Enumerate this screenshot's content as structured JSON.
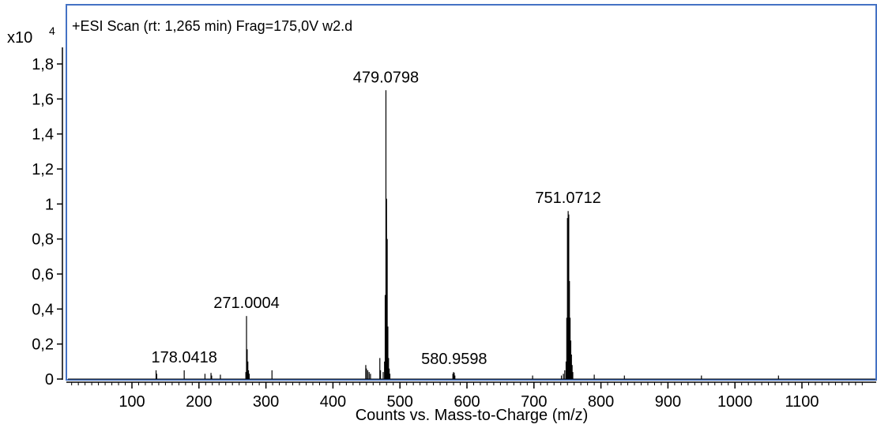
{
  "chart_data": {
    "type": "spectrum",
    "title": "+ESI Scan (rt: 1,265 min) Frag=175,0V w2.d",
    "xlabel": "Counts vs. Mass-to-Charge (m/z)",
    "ylabel": "",
    "y_multiplier": "x10",
    "y_exponent": "4",
    "xlim": [
      0,
      1230
    ],
    "ylim": [
      0,
      1.9
    ],
    "x_ticks": [
      100,
      200,
      300,
      400,
      500,
      600,
      700,
      800,
      900,
      1000,
      1100
    ],
    "x_tick_labels": [
      "100",
      "200",
      "300",
      "400",
      "500",
      "600",
      "700",
      "800",
      "900",
      "1000",
      "1100"
    ],
    "y_ticks": [
      0,
      0.2,
      0.4,
      0.6,
      0.8,
      1,
      1.2,
      1.4,
      1.6,
      1.8
    ],
    "y_tick_labels": [
      "0",
      "0,2",
      "0,4",
      "0,6",
      "0,8",
      "1",
      "1,2",
      "1,4",
      "1,6",
      "1,8"
    ],
    "peak_labels": [
      {
        "mz": 178.0418,
        "text": "178.0418",
        "intensity": 0.05
      },
      {
        "mz": 271.0004,
        "text": "271.0004",
        "intensity": 0.36
      },
      {
        "mz": 479.0798,
        "text": "479.0798",
        "intensity": 1.65
      },
      {
        "mz": 580.9598,
        "text": "580.9598",
        "intensity": 0.04
      },
      {
        "mz": 751.0712,
        "text": "751.0712",
        "intensity": 0.96
      }
    ],
    "peaks": [
      {
        "mz": 136.0,
        "intensity": 0.05
      },
      {
        "mz": 137.0,
        "intensity": 0.03
      },
      {
        "mz": 178.0,
        "intensity": 0.05
      },
      {
        "mz": 209.0,
        "intensity": 0.03
      },
      {
        "mz": 218.0,
        "intensity": 0.035
      },
      {
        "mz": 219.0,
        "intensity": 0.02
      },
      {
        "mz": 232.0,
        "intensity": 0.025
      },
      {
        "mz": 270.0,
        "intensity": 0.04
      },
      {
        "mz": 271.0,
        "intensity": 0.36
      },
      {
        "mz": 272.0,
        "intensity": 0.17
      },
      {
        "mz": 273.0,
        "intensity": 0.1
      },
      {
        "mz": 274.0,
        "intensity": 0.05
      },
      {
        "mz": 275.0,
        "intensity": 0.03
      },
      {
        "mz": 309.0,
        "intensity": 0.05
      },
      {
        "mz": 449.0,
        "intensity": 0.08
      },
      {
        "mz": 450.0,
        "intensity": 0.06
      },
      {
        "mz": 452.0,
        "intensity": 0.05
      },
      {
        "mz": 454.0,
        "intensity": 0.04
      },
      {
        "mz": 456.0,
        "intensity": 0.03
      },
      {
        "mz": 470.0,
        "intensity": 0.12
      },
      {
        "mz": 471.0,
        "intensity": 0.05
      },
      {
        "mz": 475.0,
        "intensity": 0.04
      },
      {
        "mz": 477.0,
        "intensity": 0.1
      },
      {
        "mz": 478.0,
        "intensity": 0.48
      },
      {
        "mz": 479.0798,
        "intensity": 1.65
      },
      {
        "mz": 480.0,
        "intensity": 1.03
      },
      {
        "mz": 481.0,
        "intensity": 0.8
      },
      {
        "mz": 482.0,
        "intensity": 0.3
      },
      {
        "mz": 483.0,
        "intensity": 0.12
      },
      {
        "mz": 484.0,
        "intensity": 0.06
      },
      {
        "mz": 485.0,
        "intensity": 0.03
      },
      {
        "mz": 579.0,
        "intensity": 0.03
      },
      {
        "mz": 580.0,
        "intensity": 0.04
      },
      {
        "mz": 581.0,
        "intensity": 0.035
      },
      {
        "mz": 582.0,
        "intensity": 0.02
      },
      {
        "mz": 698.0,
        "intensity": 0.02
      },
      {
        "mz": 741.0,
        "intensity": 0.02
      },
      {
        "mz": 744.0,
        "intensity": 0.03
      },
      {
        "mz": 746.0,
        "intensity": 0.05
      },
      {
        "mz": 748.0,
        "intensity": 0.1
      },
      {
        "mz": 749.0,
        "intensity": 0.35
      },
      {
        "mz": 750.0,
        "intensity": 0.92
      },
      {
        "mz": 751.0712,
        "intensity": 0.96
      },
      {
        "mz": 752.0,
        "intensity": 0.94
      },
      {
        "mz": 753.0,
        "intensity": 0.56
      },
      {
        "mz": 754.0,
        "intensity": 0.35
      },
      {
        "mz": 755.0,
        "intensity": 0.22
      },
      {
        "mz": 756.0,
        "intensity": 0.14
      },
      {
        "mz": 757.0,
        "intensity": 0.08
      },
      {
        "mz": 758.0,
        "intensity": 0.04
      },
      {
        "mz": 790.0,
        "intensity": 0.025
      },
      {
        "mz": 835.0,
        "intensity": 0.02
      },
      {
        "mz": 950.0,
        "intensity": 0.02
      },
      {
        "mz": 1065.0,
        "intensity": 0.02
      }
    ],
    "colors": {
      "frame": "#4472c4",
      "peak": "#000000",
      "axis": "#000000"
    }
  }
}
